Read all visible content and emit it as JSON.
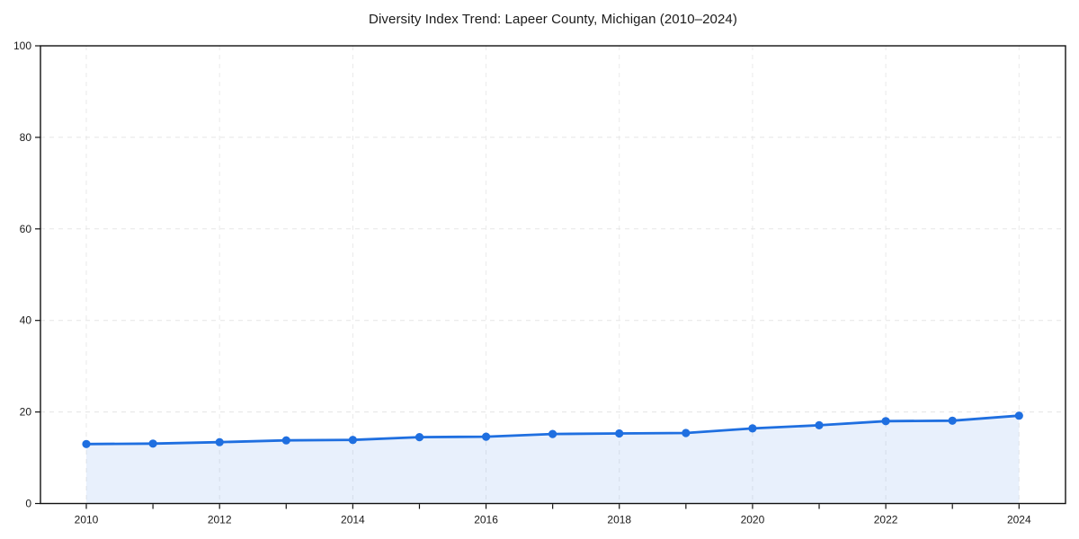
{
  "page": {
    "background": "#ffffff"
  },
  "chart_data": {
    "type": "area",
    "title": "Diversity Index Trend: Lapeer County, Michigan (2010–2024)",
    "x": [
      2010,
      2011,
      2012,
      2013,
      2014,
      2015,
      2016,
      2017,
      2018,
      2019,
      2020,
      2021,
      2022,
      2023,
      2024
    ],
    "values": [
      13.0,
      13.1,
      13.4,
      13.8,
      13.9,
      14.5,
      14.6,
      15.2,
      15.3,
      15.4,
      16.4,
      17.1,
      18.0,
      18.1,
      19.2
    ],
    "xlabel": "",
    "ylabel": "",
    "xlim": [
      2009.3,
      2024.7
    ],
    "ylim": [
      0,
      100
    ],
    "y_ticks": [
      0,
      20,
      40,
      60,
      80,
      100
    ],
    "x_tick_labels": [
      "2010",
      "2012",
      "2014",
      "2016",
      "2018",
      "2020",
      "2022",
      "2024"
    ],
    "x_tick_years": [
      2010,
      2012,
      2014,
      2016,
      2018,
      2020,
      2022,
      2024
    ],
    "grid": true,
    "grid_style": "dashed",
    "legend": false,
    "marker": "circle",
    "colors": {
      "line": "#1f6fe0",
      "marker": "#1f6fe0",
      "fill": "rgba(31,111,224,0.10)",
      "grid": "#e3e3e3",
      "spine": "#111111",
      "tick_text": "#1a1a1a",
      "title_text": "#1a1a1a"
    }
  }
}
